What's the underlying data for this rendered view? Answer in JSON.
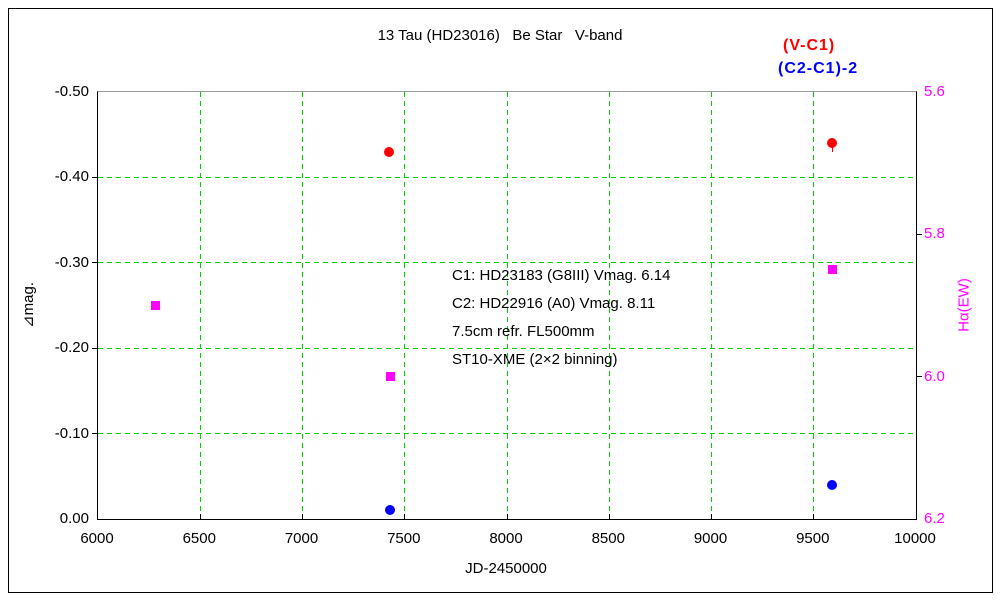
{
  "legend": {
    "items": [
      {
        "label": "(V-C1)",
        "color": "#ff0000"
      },
      {
        "label": "(C2-C1)-2",
        "color": "#0000ff"
      }
    ]
  },
  "annotation": {
    "lines": [
      "C1: HD23183 (G8III) Vmag. 6.14",
      "C2: HD22916 (A0) Vmag. 8.11",
      "7.5cm refr. FL500mm",
      "ST10-XME (2×2 binning)"
    ]
  },
  "chart_data": {
    "type": "scatter",
    "title": "13 Tau (HD23016)   Be Star   V-band",
    "grid": true,
    "grid_color": "#00d000",
    "x_axis": {
      "label": "JD-2450000",
      "min": 6000,
      "max": 10000,
      "ticks": [
        {
          "v": 6000,
          "label": "6000"
        },
        {
          "v": 6500,
          "label": "6500"
        },
        {
          "v": 7000,
          "label": "7000"
        },
        {
          "v": 7500,
          "label": "7500"
        },
        {
          "v": 8000,
          "label": "8000"
        },
        {
          "v": 8500,
          "label": "8500"
        },
        {
          "v": 9000,
          "label": "9000"
        },
        {
          "v": 9500,
          "label": "9500"
        },
        {
          "v": 10000,
          "label": "10000"
        }
      ]
    },
    "y_left": {
      "label": "⧽mag.",
      "label_text": "⊿mag.",
      "top": -0.5,
      "bottom": 0.0,
      "ticks": [
        {
          "v": -0.5,
          "label": "-0.50"
        },
        {
          "v": -0.4,
          "label": "-0.40"
        },
        {
          "v": -0.3,
          "label": "-0.30"
        },
        {
          "v": -0.2,
          "label": "-0.20"
        },
        {
          "v": -0.1,
          "label": "-0.10"
        },
        {
          "v": 0.0,
          "label": "0.00"
        }
      ]
    },
    "y_right": {
      "label": "Hα(EW)",
      "top": 5.6,
      "bottom": 6.2,
      "color": "#ff00ff",
      "ticks": [
        {
          "v": 5.6,
          "label": "5.6"
        },
        {
          "v": 5.8,
          "label": "5.8"
        },
        {
          "v": 6.0,
          "label": "6.0"
        },
        {
          "v": 6.2,
          "label": "6.2"
        }
      ]
    },
    "series": [
      {
        "id": "v-c1",
        "name": "(V-C1)",
        "axis": "left",
        "marker": "circle",
        "color": "#ff0000",
        "points": [
          {
            "x": 7423,
            "y": -0.43
          },
          {
            "x": 9590,
            "y": -0.44,
            "tail": 9
          }
        ]
      },
      {
        "id": "c2-c1-2",
        "name": "(C2-C1)-2",
        "axis": "left",
        "marker": "circle",
        "color": "#0000ff",
        "points": [
          {
            "x": 7430,
            "y": -0.01
          },
          {
            "x": 9590,
            "y": -0.04
          }
        ]
      },
      {
        "id": "halpha-ew",
        "name": "Hα(EW)",
        "axis": "right",
        "marker": "square",
        "color": "#ff00ff",
        "points": [
          {
            "x": 6280,
            "y": 5.9
          },
          {
            "x": 7430,
            "y": 6.0
          },
          {
            "x": 9590,
            "y": 5.85
          }
        ]
      }
    ]
  }
}
